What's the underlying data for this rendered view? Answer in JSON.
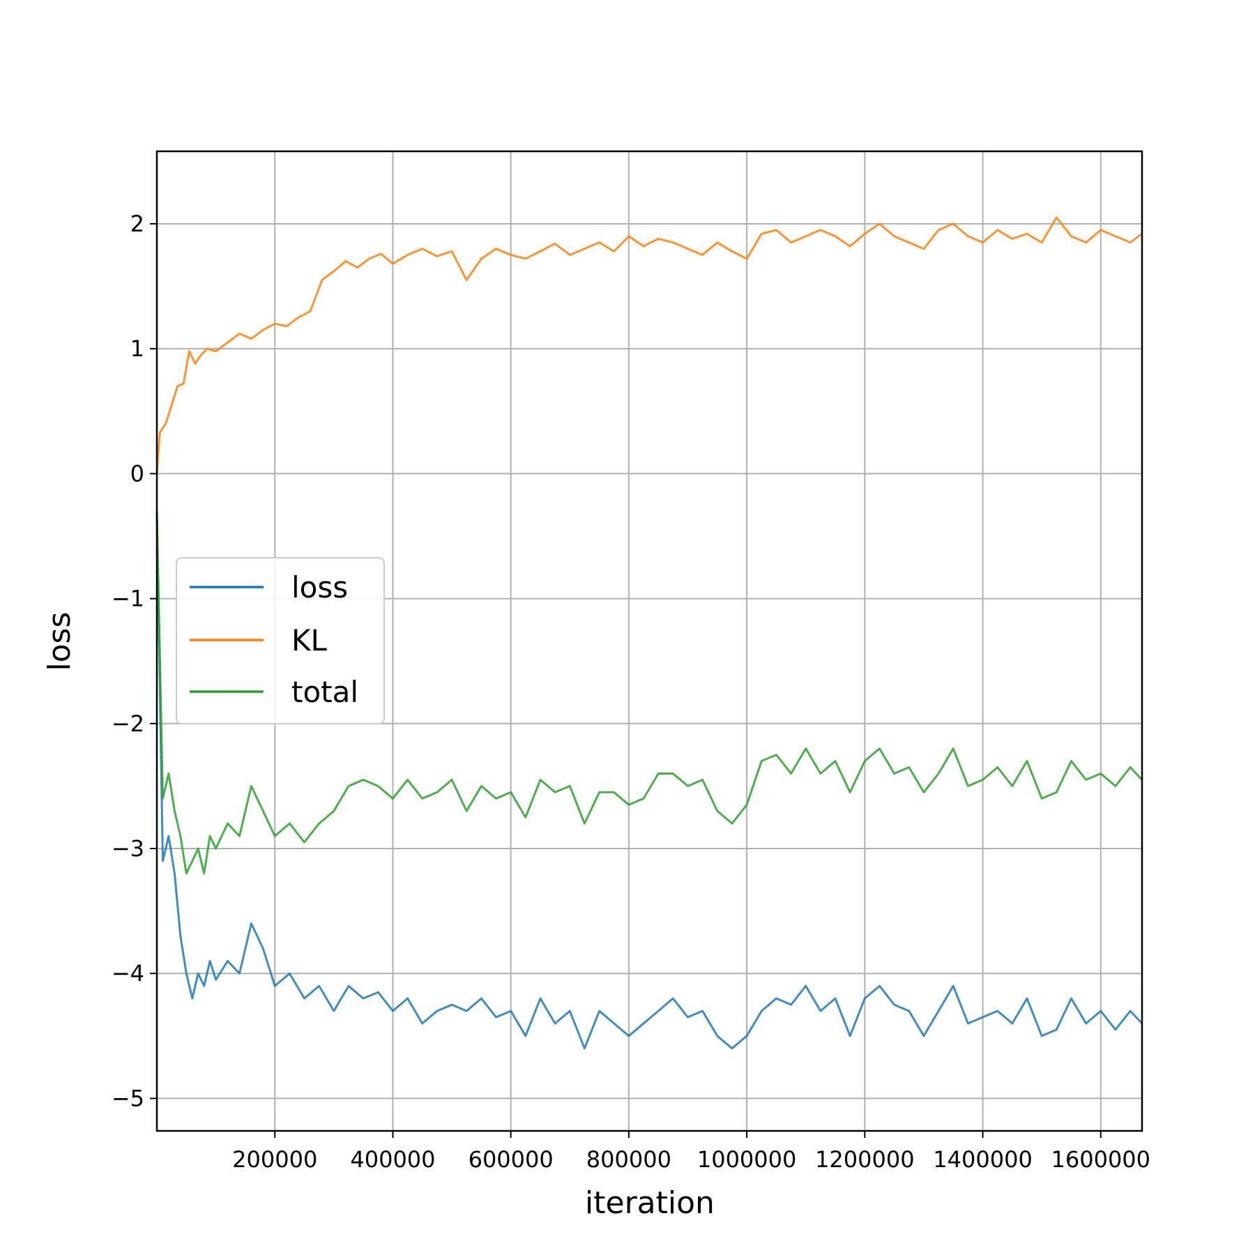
{
  "chart_data": {
    "type": "line",
    "xlabel": "iteration",
    "ylabel": "loss",
    "xlim": [
      0,
      1670000
    ],
    "ylim": [
      -5.26,
      2.58
    ],
    "grid": true,
    "legend_position": "center-left",
    "xticks": [
      200000,
      400000,
      600000,
      800000,
      1000000,
      1200000,
      1400000,
      1600000
    ],
    "xtick_labels": [
      "200000",
      "400000",
      "600000",
      "800000",
      "1000000",
      "1200000",
      "1400000",
      "1600000"
    ],
    "yticks": [
      -5,
      -4,
      -3,
      -2,
      -1,
      0,
      1,
      2
    ],
    "ytick_labels": [
      "−5",
      "−4",
      "−3",
      "−2",
      "−1",
      "0",
      "1",
      "2"
    ],
    "series": [
      {
        "name": "loss",
        "color": "#1f77b4",
        "x": [
          0,
          10000,
          20000,
          30000,
          40000,
          50000,
          60000,
          70000,
          80000,
          90000,
          100000,
          120000,
          140000,
          160000,
          180000,
          200000,
          225000,
          250000,
          275000,
          300000,
          325000,
          350000,
          375000,
          400000,
          425000,
          450000,
          475000,
          500000,
          525000,
          550000,
          575000,
          600000,
          625000,
          650000,
          675000,
          700000,
          725000,
          750000,
          775000,
          800000,
          825000,
          850000,
          875000,
          900000,
          925000,
          950000,
          975000,
          1000000,
          1025000,
          1050000,
          1075000,
          1100000,
          1125000,
          1150000,
          1175000,
          1200000,
          1225000,
          1250000,
          1275000,
          1300000,
          1325000,
          1350000,
          1375000,
          1400000,
          1425000,
          1450000,
          1475000,
          1500000,
          1525000,
          1550000,
          1575000,
          1600000,
          1625000,
          1650000,
          1670000
        ],
        "y": [
          -0.3,
          -3.1,
          -2.9,
          -3.2,
          -3.7,
          -4.0,
          -4.2,
          -4.0,
          -4.1,
          -3.9,
          -4.05,
          -3.9,
          -4.0,
          -3.6,
          -3.8,
          -4.1,
          -4.0,
          -4.2,
          -4.1,
          -4.3,
          -4.1,
          -4.2,
          -4.15,
          -4.3,
          -4.2,
          -4.4,
          -4.3,
          -4.25,
          -4.3,
          -4.2,
          -4.35,
          -4.3,
          -4.5,
          -4.2,
          -4.4,
          -4.3,
          -4.6,
          -4.3,
          -4.4,
          -4.5,
          -4.4,
          -4.3,
          -4.2,
          -4.35,
          -4.3,
          -4.5,
          -4.6,
          -4.5,
          -4.3,
          -4.2,
          -4.25,
          -4.1,
          -4.3,
          -4.2,
          -4.5,
          -4.2,
          -4.1,
          -4.25,
          -4.3,
          -4.5,
          -4.3,
          -4.1,
          -4.4,
          -4.35,
          -4.3,
          -4.4,
          -4.2,
          -4.5,
          -4.45,
          -4.2,
          -4.4,
          -4.3,
          -4.45,
          -4.3,
          -4.4
        ]
      },
      {
        "name": "KL",
        "color": "#ff7f0e",
        "x": [
          0,
          5000,
          15000,
          25000,
          35000,
          45000,
          55000,
          65000,
          75000,
          85000,
          100000,
          120000,
          140000,
          160000,
          180000,
          200000,
          220000,
          240000,
          260000,
          280000,
          300000,
          320000,
          340000,
          360000,
          380000,
          400000,
          425000,
          450000,
          475000,
          500000,
          525000,
          550000,
          575000,
          600000,
          625000,
          650000,
          675000,
          700000,
          725000,
          750000,
          775000,
          800000,
          825000,
          850000,
          875000,
          900000,
          925000,
          950000,
          975000,
          1000000,
          1025000,
          1050000,
          1075000,
          1100000,
          1125000,
          1150000,
          1175000,
          1200000,
          1225000,
          1250000,
          1275000,
          1300000,
          1325000,
          1350000,
          1375000,
          1400000,
          1425000,
          1450000,
          1475000,
          1500000,
          1525000,
          1550000,
          1575000,
          1600000,
          1625000,
          1650000,
          1670000
        ],
        "y": [
          0.0,
          0.33,
          0.4,
          0.55,
          0.7,
          0.72,
          0.98,
          0.88,
          0.95,
          1.0,
          0.98,
          1.05,
          1.12,
          1.08,
          1.15,
          1.2,
          1.18,
          1.25,
          1.3,
          1.55,
          1.62,
          1.7,
          1.65,
          1.72,
          1.76,
          1.68,
          1.75,
          1.8,
          1.74,
          1.78,
          1.55,
          1.72,
          1.8,
          1.75,
          1.72,
          1.78,
          1.84,
          1.75,
          1.8,
          1.85,
          1.78,
          1.9,
          1.82,
          1.88,
          1.85,
          1.8,
          1.75,
          1.85,
          1.78,
          1.72,
          1.92,
          1.95,
          1.85,
          1.9,
          1.95,
          1.9,
          1.82,
          1.92,
          2.0,
          1.9,
          1.85,
          1.8,
          1.95,
          2.0,
          1.9,
          1.85,
          1.95,
          1.88,
          1.92,
          1.85,
          2.05,
          1.9,
          1.85,
          1.95,
          1.9,
          1.85,
          1.92
        ]
      },
      {
        "name": "total",
        "color": "#2ca02c",
        "x": [
          0,
          10000,
          20000,
          30000,
          40000,
          50000,
          60000,
          70000,
          80000,
          90000,
          100000,
          120000,
          140000,
          160000,
          180000,
          200000,
          225000,
          250000,
          275000,
          300000,
          325000,
          350000,
          375000,
          400000,
          425000,
          450000,
          475000,
          500000,
          525000,
          550000,
          575000,
          600000,
          625000,
          650000,
          675000,
          700000,
          725000,
          750000,
          775000,
          800000,
          825000,
          850000,
          875000,
          900000,
          925000,
          950000,
          975000,
          1000000,
          1025000,
          1050000,
          1075000,
          1100000,
          1125000,
          1150000,
          1175000,
          1200000,
          1225000,
          1250000,
          1275000,
          1300000,
          1325000,
          1350000,
          1375000,
          1400000,
          1425000,
          1450000,
          1475000,
          1500000,
          1525000,
          1550000,
          1575000,
          1600000,
          1625000,
          1650000,
          1670000
        ],
        "y": [
          -0.3,
          -2.6,
          -2.4,
          -2.7,
          -2.9,
          -3.2,
          -3.1,
          -3.0,
          -3.2,
          -2.9,
          -3.0,
          -2.8,
          -2.9,
          -2.5,
          -2.7,
          -2.9,
          -2.8,
          -2.95,
          -2.8,
          -2.7,
          -2.5,
          -2.45,
          -2.5,
          -2.6,
          -2.45,
          -2.6,
          -2.55,
          -2.45,
          -2.7,
          -2.5,
          -2.6,
          -2.55,
          -2.75,
          -2.45,
          -2.55,
          -2.5,
          -2.8,
          -2.55,
          -2.55,
          -2.65,
          -2.6,
          -2.4,
          -2.4,
          -2.5,
          -2.45,
          -2.7,
          -2.8,
          -2.65,
          -2.3,
          -2.25,
          -2.4,
          -2.2,
          -2.4,
          -2.3,
          -2.55,
          -2.3,
          -2.2,
          -2.4,
          -2.35,
          -2.55,
          -2.4,
          -2.2,
          -2.5,
          -2.45,
          -2.35,
          -2.5,
          -2.3,
          -2.6,
          -2.55,
          -2.3,
          -2.45,
          -2.4,
          -2.5,
          -2.35,
          -2.45
        ]
      }
    ]
  }
}
